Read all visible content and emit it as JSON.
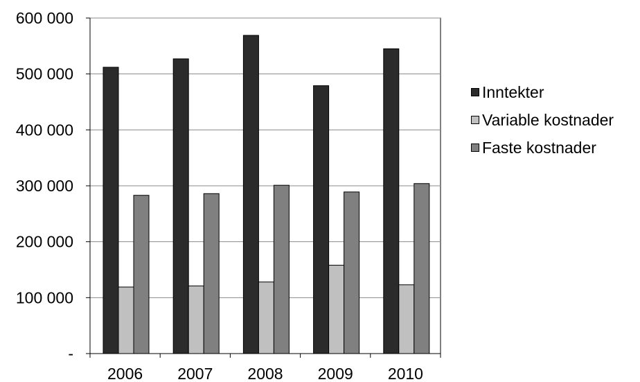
{
  "chart_data": {
    "type": "bar",
    "title": "",
    "xlabel": "",
    "ylabel": "",
    "categories": [
      "2006",
      "2007",
      "2008",
      "2009",
      "2010"
    ],
    "series": [
      {
        "name": "Inntekter",
        "color": "#2b2b2b",
        "values": [
          512000,
          527000,
          569000,
          479000,
          545000
        ]
      },
      {
        "name": "Variable kostnader",
        "color": "#c0c0c0",
        "values": [
          119000,
          121000,
          128000,
          158000,
          123000
        ]
      },
      {
        "name": "Faste kostnader",
        "color": "#808080",
        "values": [
          283000,
          286000,
          301000,
          289000,
          304000
        ]
      }
    ],
    "ylim": [
      0,
      600000
    ],
    "y_ticks": [
      0,
      100000,
      200000,
      300000,
      400000,
      500000,
      600000
    ],
    "y_tick_labels": [
      "-",
      "100 000",
      "200 000",
      "300 000",
      "400 000",
      "500 000",
      "600 000"
    ],
    "grid": true,
    "legend_position": "right"
  }
}
